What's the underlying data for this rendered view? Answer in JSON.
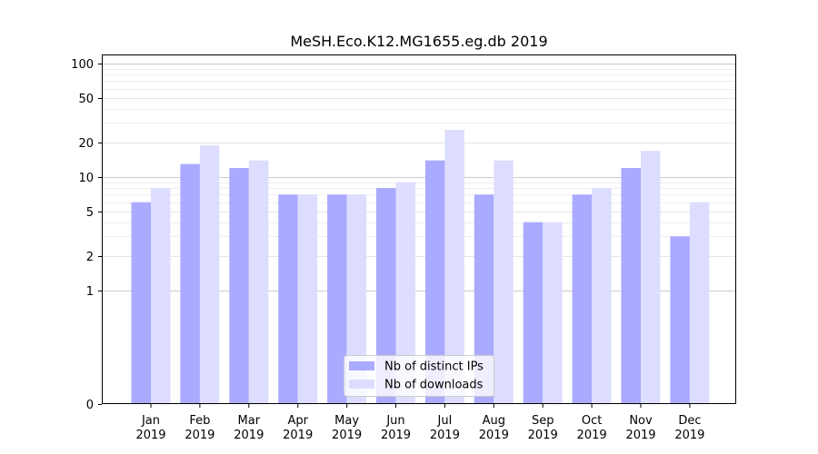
{
  "chart_data": {
    "type": "bar",
    "title": "MeSH.Eco.K12.MG1655.eg.db 2019",
    "xlabel": "",
    "ylabel": "",
    "yscale": "symlog",
    "ylim": [
      0,
      120
    ],
    "yticks": [
      0,
      1,
      2,
      5,
      10,
      20,
      50,
      100
    ],
    "grid": "horizontal",
    "legend_position": "bottom-center",
    "categories": [
      [
        "Jan",
        "2019"
      ],
      [
        "Feb",
        "2019"
      ],
      [
        "Mar",
        "2019"
      ],
      [
        "Apr",
        "2019"
      ],
      [
        "May",
        "2019"
      ],
      [
        "Jun",
        "2019"
      ],
      [
        "Jul",
        "2019"
      ],
      [
        "Aug",
        "2019"
      ],
      [
        "Sep",
        "2019"
      ],
      [
        "Oct",
        "2019"
      ],
      [
        "Nov",
        "2019"
      ],
      [
        "Dec",
        "2019"
      ]
    ],
    "series": [
      {
        "name": "Nb of distinct IPs",
        "color": "#aaaaff",
        "values": [
          6,
          13,
          12,
          7,
          7,
          8,
          14,
          7,
          4,
          7,
          12,
          3
        ]
      },
      {
        "name": "Nb of downloads",
        "color": "#ddddff",
        "values": [
          8,
          19,
          14,
          7,
          7,
          9,
          26,
          14,
          4,
          8,
          17,
          6
        ]
      }
    ]
  }
}
